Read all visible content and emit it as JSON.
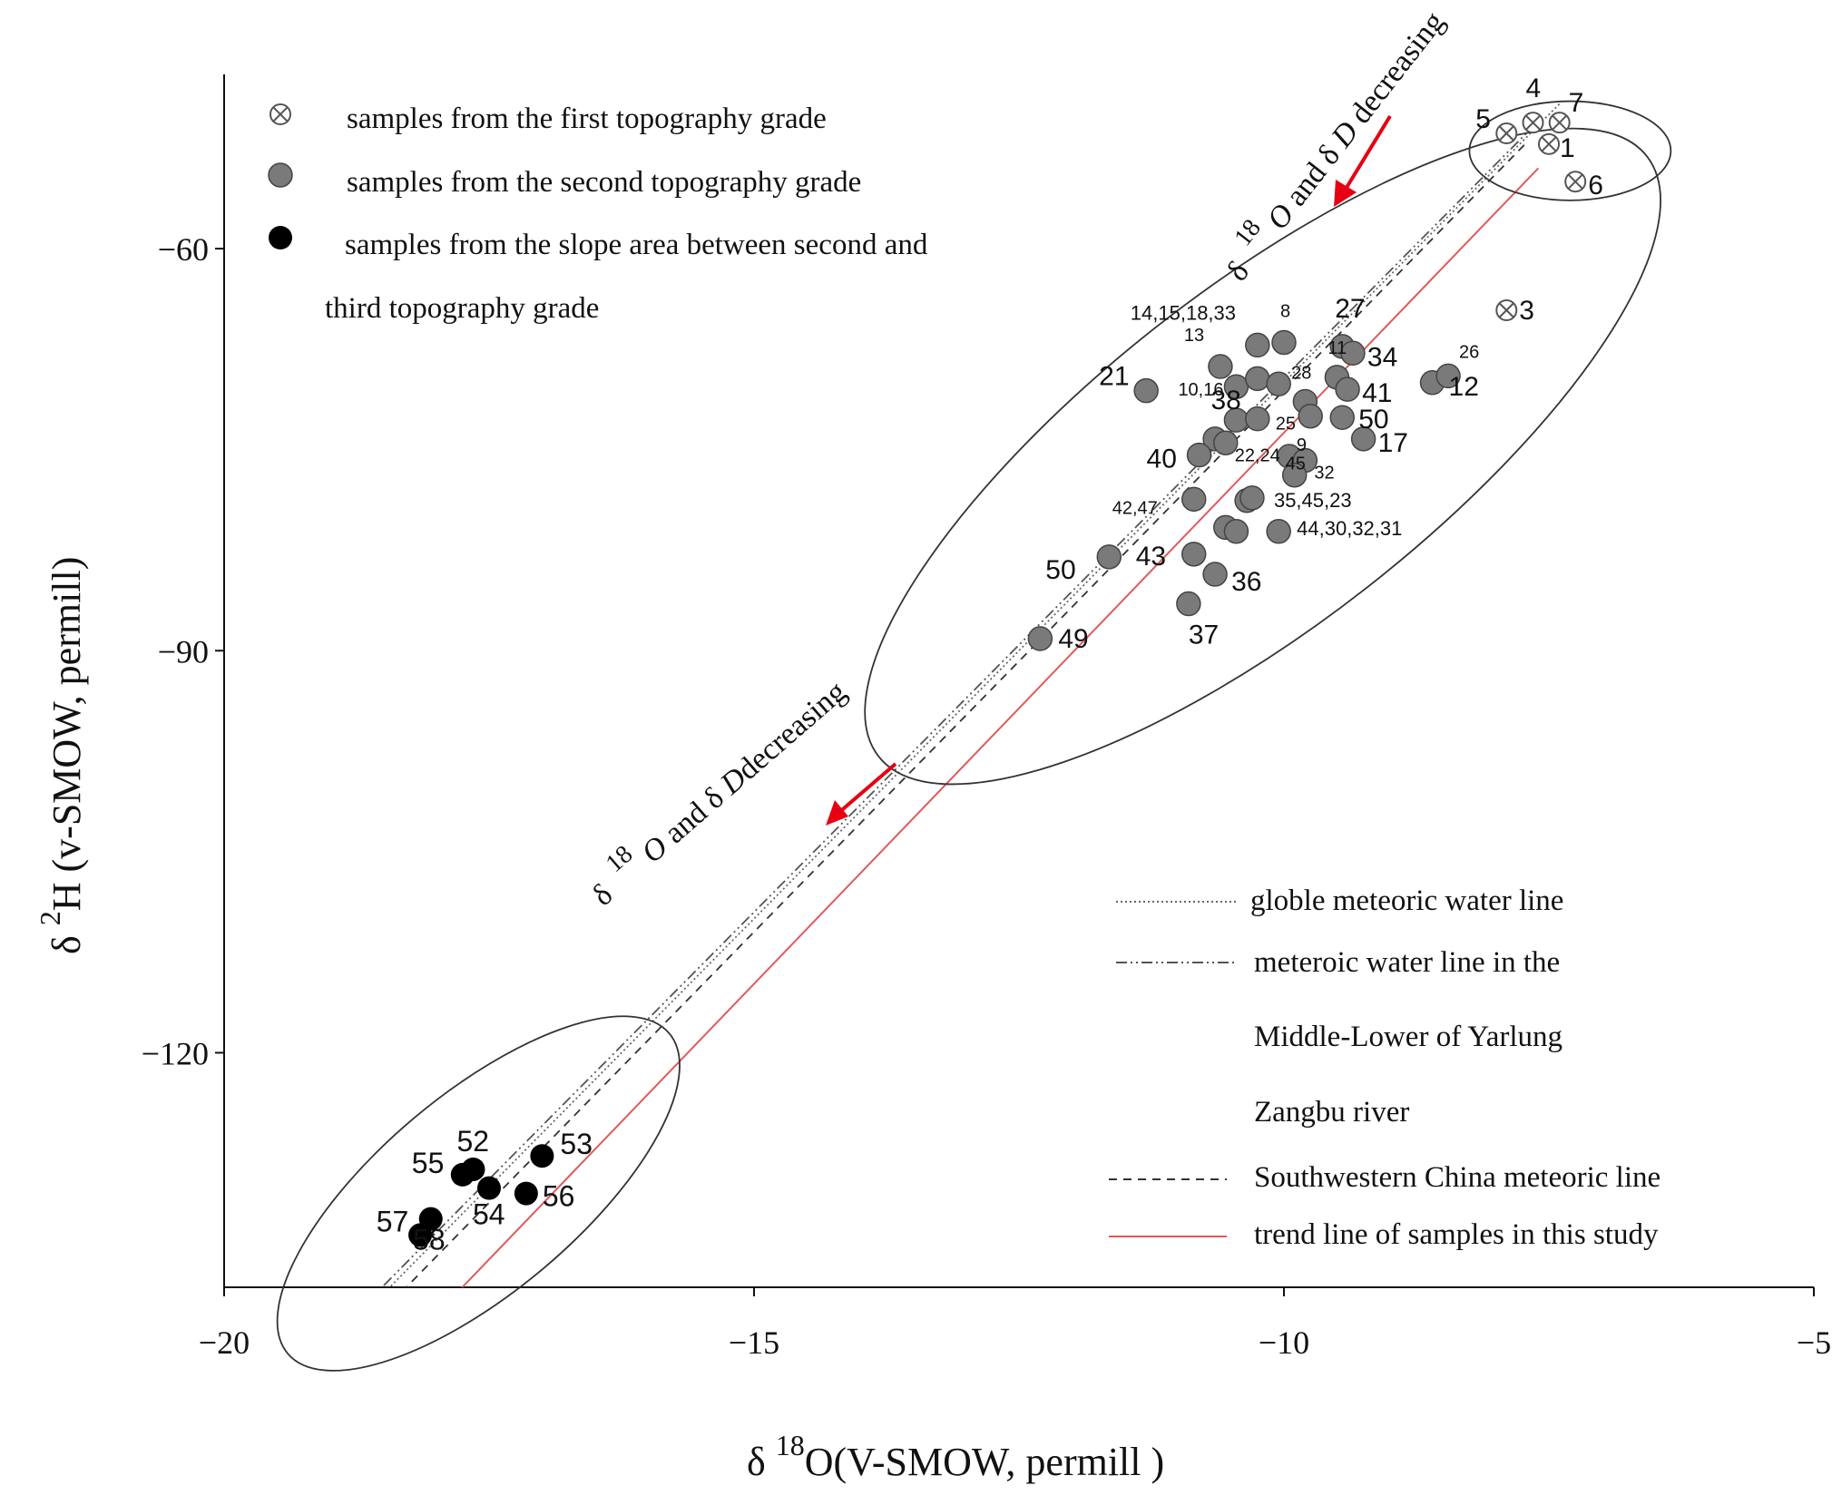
{
  "chart_data": {
    "type": "scatter",
    "xlabel": "δ 18O(V-SMOW, permill )",
    "ylabel": "δ 2H (v-SMOW, permill)",
    "xlim": [
      -20,
      -5
    ],
    "ylim": [
      -137.5,
      -47
    ],
    "x_ticks": [
      -20,
      -15,
      -10,
      -5
    ],
    "y_ticks": [
      -60,
      -90,
      -120
    ],
    "x_tick_labels": [
      "−20",
      "−15",
      "−10",
      "−5"
    ],
    "y_tick_labels": [
      "−60",
      "−90",
      "−120"
    ],
    "legend_points": [
      {
        "key": "first",
        "label": "samples from the first topography grade"
      },
      {
        "key": "second",
        "label": "samples from the second topography grade"
      },
      {
        "key": "slope",
        "label": "samples from the slope area between second and",
        "label_cont": "third topography grade"
      }
    ],
    "legend_lines": [
      {
        "key": "gmwl",
        "label": "globle meteoric water line"
      },
      {
        "key": "lmwl",
        "label": "meteroic water line in the",
        "label_cont": [
          "Middle-Lower of Yarlung",
          "Zangbu river"
        ]
      },
      {
        "key": "swc",
        "label": "Southwestern China meteoric line"
      },
      {
        "key": "trend",
        "label": "trend line of samples in this study"
      }
    ],
    "annotations": {
      "upper": {
        "a": "δ",
        "b": "18",
        "c": "O",
        "d": " and δ ",
        "e": "D",
        "f": " decreasing"
      },
      "lower": {
        "a": "δ",
        "b": "18",
        "c": "O",
        "d": " and δ ",
        "e": "D",
        "f": "decreasing"
      }
    },
    "lines": [
      {
        "key": "gmwl",
        "x": [
          -19.6,
          -7.4
        ],
        "y": [
          -146.8,
          -49.2
        ]
      },
      {
        "key": "lmwl",
        "x": [
          -19.0,
          -7.6
        ],
        "y": [
          -141.4,
          -50.5
        ]
      },
      {
        "key": "swc",
        "x": [
          -18.9,
          -7.7
        ],
        "y": [
          -142.5,
          -52.0
        ]
      },
      {
        "key": "trend",
        "x": [
          -18.3,
          -7.6
        ],
        "y": [
          -142.0,
          -54.0
        ]
      }
    ],
    "ellipses": [
      {
        "cx": -7.3,
        "cy": -52.7,
        "rx": 0.95,
        "ry": 3.7,
        "rot": 0
      },
      {
        "cx": -10.2,
        "cy": -75.5,
        "rx": 4.6,
        "ry": 12.5,
        "rot": -38
      },
      {
        "cx": -17.6,
        "cy": -130.5,
        "rx": 2.35,
        "ry": 7.4,
        "rot": -40
      }
    ],
    "series": [
      {
        "name": "samples from the first topography grade",
        "key": "first",
        "points": [
          {
            "label": "4",
            "x": -7.65,
            "y": -50.6
          },
          {
            "label": "7",
            "x": -7.4,
            "y": -50.6
          },
          {
            "label": "5",
            "x": -7.9,
            "y": -51.4
          },
          {
            "label": "1",
            "x": -7.5,
            "y": -52.2
          },
          {
            "label": "6",
            "x": -7.25,
            "y": -55.0
          },
          {
            "label": "3",
            "x": -7.9,
            "y": -64.6
          }
        ]
      },
      {
        "name": "samples from the second topography grade",
        "key": "second",
        "points": [
          {
            "label": "8",
            "x": -10.0,
            "y": -67.0
          },
          {
            "label": "14,15,18,33",
            "x": -10.25,
            "y": -67.2
          },
          {
            "label": "27",
            "x": -9.45,
            "y": -67.3
          },
          {
            "label": "13",
            "x": -10.6,
            "y": -68.8
          },
          {
            "label": "11",
            "x": -9.5,
            "y": -69.6
          },
          {
            "label": "21",
            "x": -11.3,
            "y": -70.6
          },
          {
            "label": "10,16",
            "x": -10.45,
            "y": -70.3
          },
          {
            "label": "",
            "x": -10.25,
            "y": -69.7
          },
          {
            "label": "28",
            "x": -10.05,
            "y": -70.1
          },
          {
            "label": "41",
            "x": -9.4,
            "y": -70.5
          },
          {
            "label": "12",
            "x": -8.6,
            "y": -70.0
          },
          {
            "label": "26",
            "x": -8.45,
            "y": -69.5
          },
          {
            "label": "34",
            "x": -9.35,
            "y": -67.8
          },
          {
            "label": "",
            "x": -9.8,
            "y": -71.4
          },
          {
            "label": "",
            "x": -9.75,
            "y": -72.5
          },
          {
            "label": "50",
            "x": -9.45,
            "y": -72.6
          },
          {
            "label": "38",
            "x": -10.45,
            "y": -72.8
          },
          {
            "label": "25",
            "x": -10.25,
            "y": -72.7
          },
          {
            "label": "",
            "x": -10.65,
            "y": -74.2
          },
          {
            "label": "17",
            "x": -9.25,
            "y": -74.2
          },
          {
            "label": "40",
            "x": -10.8,
            "y": -75.4
          },
          {
            "label": "22,24",
            "x": -10.55,
            "y": -74.5
          },
          {
            "label": "9",
            "x": -9.95,
            "y": -75.5
          },
          {
            "label": "32",
            "x": -9.8,
            "y": -75.8
          },
          {
            "label": "45",
            "x": -9.9,
            "y": -76.9
          },
          {
            "label": "42,47",
            "x": -10.85,
            "y": -78.7
          },
          {
            "label": "",
            "x": -10.35,
            "y": -78.8
          },
          {
            "label": "35,45,23",
            "x": -10.3,
            "y": -78.6
          },
          {
            "label": "",
            "x": -10.55,
            "y": -80.8
          },
          {
            "label": "",
            "x": -10.45,
            "y": -81.1
          },
          {
            "label": "44,30,32,31",
            "x": -10.05,
            "y": -81.1
          },
          {
            "label": "50",
            "x": -11.65,
            "y": -83.0
          },
          {
            "label": "43",
            "x": -10.85,
            "y": -82.8
          },
          {
            "label": "36",
            "x": -10.65,
            "y": -84.3
          },
          {
            "label": "37",
            "x": -10.9,
            "y": -86.5
          },
          {
            "label": "49",
            "x": -12.3,
            "y": -89.1
          }
        ]
      },
      {
        "name": "samples from the slope area between second and third topography grade",
        "key": "slope",
        "points": [
          {
            "label": "53",
            "x": -17.0,
            "y": -127.7
          },
          {
            "label": "52",
            "x": -17.65,
            "y": -128.7
          },
          {
            "label": "55",
            "x": -17.75,
            "y": -129.1
          },
          {
            "label": "54",
            "x": -17.5,
            "y": -130.1
          },
          {
            "label": "56",
            "x": -17.15,
            "y": -130.5
          },
          {
            "label": "57",
            "x": -18.05,
            "y": -132.4
          },
          {
            "label": "58",
            "x": -18.15,
            "y": -133.6
          }
        ]
      }
    ]
  }
}
